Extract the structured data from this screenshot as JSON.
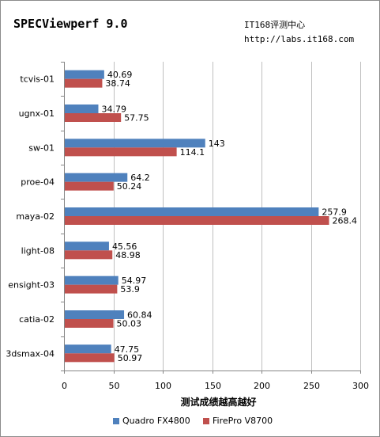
{
  "title": "SPECViewperf 9.0",
  "source_lines": [
    "IT168评测中心",
    "http://labs.it168.com"
  ],
  "chart_data": {
    "type": "bar",
    "orientation": "horizontal",
    "categories": [
      "tcvis-01",
      "ugnx-01",
      "sw-01",
      "proe-04",
      "maya-02",
      "light-08",
      "ensight-03",
      "catia-02",
      "3dsmax-04"
    ],
    "series": [
      {
        "name": "Quadro FX4800",
        "color": "#4f81bd",
        "values": [
          40.69,
          34.79,
          143,
          64.2,
          257.9,
          45.56,
          54.97,
          60.84,
          47.75
        ],
        "labels": [
          "40.69",
          "34.79",
          "143",
          "64.2",
          "257.9",
          "45.56",
          "54.97",
          "60.84",
          "47.75"
        ]
      },
      {
        "name": "FirePro V8700",
        "color": "#c0504d",
        "values": [
          38.74,
          57.75,
          114.1,
          50.24,
          268.4,
          48.98,
          53.9,
          50.03,
          50.97
        ],
        "labels": [
          "38.74",
          "57.75",
          "114.1",
          "50.24",
          "268.4",
          "48.98",
          "53.9",
          "50.03",
          "50.97"
        ]
      }
    ],
    "xlim": [
      0,
      300
    ],
    "xticks": [
      0,
      50,
      100,
      150,
      200,
      250,
      300
    ],
    "xlabel": "测试成绩越高越好",
    "ylabel": "",
    "grid": "vertical",
    "legend": "bottom"
  }
}
